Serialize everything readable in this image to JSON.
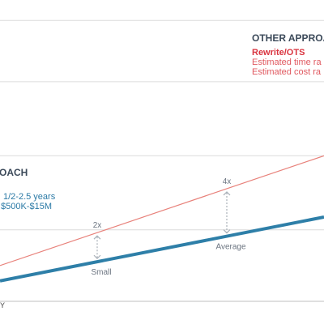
{
  "colors": {
    "rewrite": "#e8817a",
    "current": "#2e7fa8",
    "heading": "#3c4a5a",
    "rewrite_label": "#d9343f",
    "rewrite_text": "#e0585f",
    "current_text": "#2b7aa6",
    "gridline": "#dcdcdc",
    "annotation": "#6b7480",
    "arrow": "#a9b0b8"
  },
  "other_approach": {
    "heading": "OTHER APPROAC",
    "label": "Rewrite/OTS",
    "time_range": "Estimated time ra",
    "cost_range": "Estimated cost ra"
  },
  "current_approach": {
    "heading": "OACH",
    "time_range": "1/2-2.5 years",
    "cost_range": "$500K-$15M"
  },
  "annotations": [
    {
      "multiplier": "2x",
      "size": "Small"
    },
    {
      "multiplier": "4x",
      "size": "Average"
    }
  ],
  "axis": {
    "x_fragment": "Y"
  },
  "chart_data": {
    "type": "line",
    "title": "",
    "xlabel": "",
    "ylabel": "",
    "grid": true,
    "series": [
      {
        "name": "Rewrite/OTS",
        "color_key": "rewrite",
        "x": [
          0,
          10
        ],
        "y": [
          0.6,
          4.9
        ],
        "stroke": "thin"
      },
      {
        "name": "",
        "color_key": "current",
        "x": [
          0,
          10
        ],
        "y": [
          0.0,
          2.5
        ],
        "stroke": "thick"
      }
    ],
    "ylim": [
      -0.8,
      11.0
    ],
    "xlim": [
      0,
      10
    ],
    "gridlines_y": [
      2.0,
      4.9,
      7.8,
      10.2
    ],
    "annotation_points": [
      {
        "x": 3.0,
        "multiplier": "2x",
        "size": "Small"
      },
      {
        "x": 7.0,
        "multiplier": "4x",
        "size": "Average"
      }
    ]
  }
}
